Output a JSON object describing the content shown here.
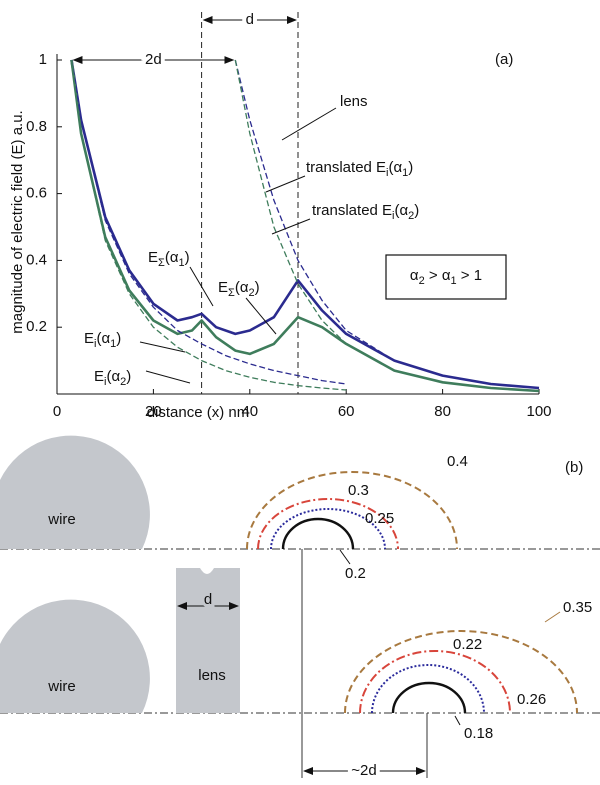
{
  "chart_data": {
    "type": "line",
    "panel_label": "(a)",
    "xlabel": "distance (x) nm",
    "ylabel": "magnitude of electric field (E) a.u.",
    "xlim": [
      0,
      100
    ],
    "ylim": [
      0,
      1
    ],
    "xticks": [
      0,
      20,
      40,
      60,
      80,
      100
    ],
    "yticks": [
      0.2,
      0.4,
      0.6,
      0.8,
      1
    ],
    "vlines": [
      30,
      50
    ],
    "dimension_arrows": [
      {
        "label": "2d",
        "x": [
          3,
          37
        ]
      },
      {
        "label": "d",
        "x": [
          30,
          50
        ]
      }
    ],
    "series": [
      {
        "name_parts": [
          "E",
          "Σ",
          "(α",
          "1",
          ")"
        ],
        "color": "#2b2b8f",
        "style": "solid",
        "x": [
          3,
          5,
          10,
          15,
          20,
          25,
          28,
          30,
          33,
          37,
          40,
          45,
          50,
          55,
          60,
          70,
          80,
          90,
          100
        ],
        "values": [
          1,
          0.82,
          0.53,
          0.37,
          0.27,
          0.22,
          0.23,
          0.24,
          0.2,
          0.18,
          0.19,
          0.23,
          0.34,
          0.25,
          0.18,
          0.1,
          0.055,
          0.03,
          0.018
        ]
      },
      {
        "name_parts": [
          "E",
          "Σ",
          "(α",
          "2",
          ")"
        ],
        "color": "#3f7d5c",
        "style": "solid",
        "x": [
          3,
          5,
          10,
          15,
          20,
          25,
          28,
          30,
          33,
          37,
          40,
          45,
          50,
          55,
          60,
          70,
          80,
          90,
          100
        ],
        "values": [
          1,
          0.78,
          0.47,
          0.31,
          0.22,
          0.18,
          0.19,
          0.22,
          0.17,
          0.13,
          0.12,
          0.15,
          0.23,
          0.2,
          0.15,
          0.07,
          0.035,
          0.018,
          0.009
        ]
      },
      {
        "name_parts": [
          "E",
          "i",
          "(α",
          "1",
          ")"
        ],
        "color": "#2b2b8f",
        "style": "dashed",
        "x": [
          3,
          5,
          10,
          15,
          20,
          25,
          30,
          35,
          40,
          45,
          50,
          55,
          60
        ],
        "values": [
          1,
          0.82,
          0.52,
          0.36,
          0.26,
          0.19,
          0.15,
          0.115,
          0.09,
          0.07,
          0.055,
          0.04,
          0.03
        ]
      },
      {
        "name_parts": [
          "E",
          "i",
          "(α",
          "2",
          ")"
        ],
        "color": "#3f7d5c",
        "style": "dashed",
        "x": [
          3,
          5,
          10,
          15,
          20,
          25,
          30,
          35,
          40,
          45,
          50,
          55,
          60
        ],
        "values": [
          1,
          0.78,
          0.46,
          0.3,
          0.2,
          0.14,
          0.1,
          0.07,
          0.05,
          0.035,
          0.025,
          0.018,
          0.012
        ]
      },
      {
        "name_parts": [
          "translated E",
          "i",
          "(α",
          "1",
          ")"
        ],
        "color": "#2b2b8f",
        "style": "dashed",
        "x": [
          37,
          40,
          45,
          50,
          55,
          60,
          70,
          80,
          90,
          100
        ],
        "values": [
          1,
          0.82,
          0.58,
          0.4,
          0.28,
          0.19,
          0.1,
          0.055,
          0.03,
          0.018
        ]
      },
      {
        "name_parts": [
          "translated E",
          "i",
          "(α",
          "2",
          ")"
        ],
        "color": "#3f7d5c",
        "style": "dashed",
        "x": [
          37,
          40,
          45,
          50,
          55,
          60,
          70,
          80,
          90,
          100
        ],
        "values": [
          1,
          0.78,
          0.5,
          0.33,
          0.22,
          0.15,
          0.07,
          0.035,
          0.018,
          0.009
        ]
      }
    ],
    "lens_label": "lens",
    "condition_parts": [
      "α",
      "2",
      " > α",
      "1",
      " > 1"
    ]
  },
  "diagram": {
    "panel_label": "(b)",
    "top": {
      "wire": "wire",
      "contours": [
        "0.4",
        "0.3",
        "0.25",
        "0.2"
      ]
    },
    "bottom": {
      "wire": "wire",
      "lens": "lens",
      "lens_width": "d",
      "contours": [
        "0.35",
        "0.26",
        "0.22",
        "0.18"
      ],
      "shift": "~2d"
    }
  }
}
